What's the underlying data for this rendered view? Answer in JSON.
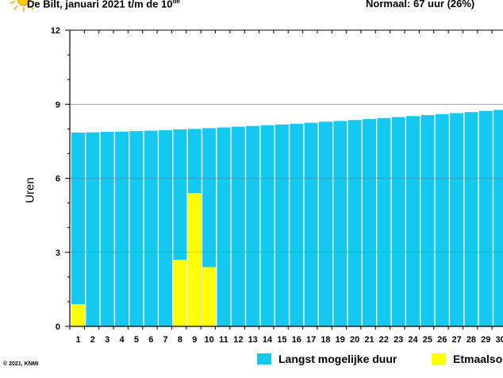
{
  "header": {
    "title_main": "De Bilt, januari 2021 t/m de 10",
    "title_sup": "de",
    "normal": "Normaal: 67 uur (26%)",
    "sun_icon": "sun-icon"
  },
  "footer": {
    "copyright": "© 2021, KNMI"
  },
  "colors": {
    "max_duration": "#14c8f0",
    "daily_sunshine": "#ffff00"
  },
  "chart_data": {
    "type": "bar",
    "ylabel": "Uren",
    "ylim": [
      0,
      12
    ],
    "yticks": [
      "0",
      "3",
      "6",
      "9",
      "12"
    ],
    "categories": [
      "1",
      "2",
      "3",
      "4",
      "5",
      "6",
      "7",
      "8",
      "9",
      "10",
      "11",
      "12",
      "13",
      "14",
      "15",
      "16",
      "17",
      "18",
      "19",
      "20",
      "21",
      "22",
      "23",
      "24",
      "25",
      "26",
      "27",
      "28",
      "29",
      "30"
    ],
    "grid": true,
    "series": [
      {
        "name": "Langst mogelijke duur",
        "values": [
          7.85,
          7.86,
          7.88,
          7.89,
          7.91,
          7.93,
          7.95,
          7.98,
          8.0,
          8.03,
          8.06,
          8.09,
          8.12,
          8.15,
          8.18,
          8.21,
          8.25,
          8.29,
          8.32,
          8.36,
          8.4,
          8.44,
          8.48,
          8.52,
          8.56,
          8.6,
          8.64,
          8.68,
          8.73,
          8.77
        ]
      },
      {
        "name": "Etmaalsom",
        "values": [
          0.9,
          0,
          0,
          0,
          0,
          0,
          0,
          2.7,
          5.4,
          2.4,
          null,
          null,
          null,
          null,
          null,
          null,
          null,
          null,
          null,
          null,
          null,
          null,
          null,
          null,
          null,
          null,
          null,
          null,
          null,
          null
        ]
      }
    ],
    "legend_labels": [
      "Langst mogelijke duur",
      "Etmaalsom"
    ]
  }
}
